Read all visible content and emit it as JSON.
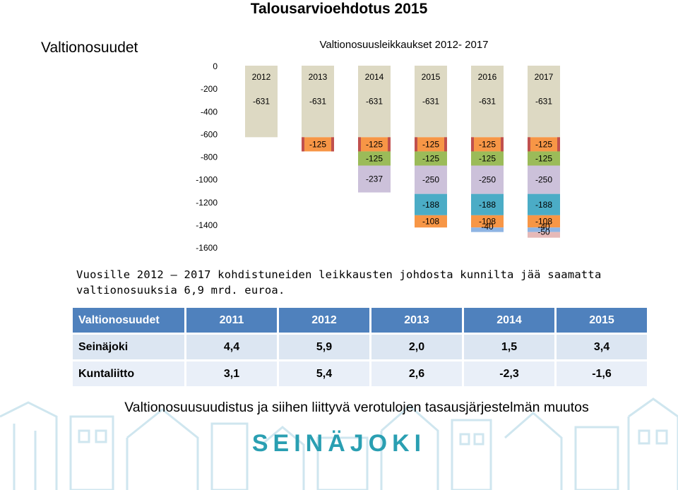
{
  "main_title": "Talousarvioehdotus 2015",
  "section_title": "Valtionosuudet",
  "chart_data": {
    "type": "bar",
    "stacked": true,
    "title": "Valtionosuusleikkaukset 2012- 2017",
    "categories": [
      "2012",
      "2013",
      "2014",
      "2015",
      "2016",
      "2017"
    ],
    "ylim": [
      -1600,
      0
    ],
    "yticks": [
      0,
      -200,
      -400,
      -600,
      -800,
      -1000,
      -1200,
      -1400,
      -1600
    ],
    "series": [
      {
        "color": "#ddd9c3",
        "values": [
          -631,
          -631,
          -631,
          -631,
          -631,
          -631
        ]
      },
      {
        "color": "#f79646",
        "values": [
          null,
          -125,
          -125,
          -125,
          -125,
          -125
        ]
      },
      {
        "color": "#9bbb59",
        "values": [
          null,
          null,
          -125,
          -125,
          -125,
          -125
        ]
      },
      {
        "color": "#ccc1da",
        "values": [
          null,
          null,
          -237,
          -250,
          -250,
          -250
        ]
      },
      {
        "color": "#4bacc6",
        "values": [
          null,
          null,
          null,
          -188,
          -188,
          -188
        ]
      },
      {
        "color": "#f79646",
        "values": [
          null,
          null,
          null,
          -108,
          -108,
          -108
        ]
      },
      {
        "color": "#8eb4e3",
        "values": [
          null,
          null,
          null,
          null,
          -40,
          -40
        ]
      },
      {
        "color": "#e6b9b8",
        "values": [
          null,
          null,
          null,
          null,
          null,
          -50
        ]
      }
    ],
    "edge_color": "#c0504d"
  },
  "summary": "Vuosille 2012 – 2017 kohdistuneiden leikkausten johdosta kunnilta jää saamatta valtionosuuksia 6,9 mrd. euroa.",
  "table": {
    "headers": [
      "Valtionosuudet",
      "2011",
      "2012",
      "2013",
      "2014",
      "2015"
    ],
    "rows": [
      [
        "Seinäjoki",
        "4,4",
        "5,9",
        "2,0",
        "1,5",
        "3,4"
      ],
      [
        "Kuntaliitto",
        "3,1",
        "5,4",
        "2,6",
        "-2,3",
        "-1,6"
      ]
    ]
  },
  "footer_text": "Valtionosuusuudistus ja siihen liittyvä verotulojen tasausjärjestelmän muutos",
  "logo_text": "SEINÄJOKI"
}
